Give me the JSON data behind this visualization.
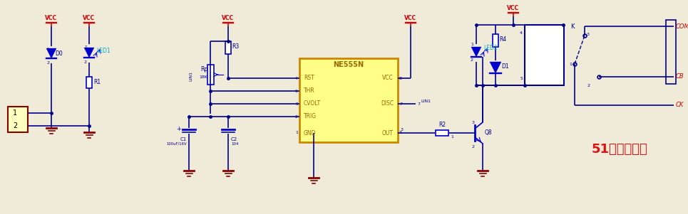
{
  "bg_color": "#f0ead8",
  "wire_color": "#00008b",
  "vcc_color": "#cc0000",
  "gnd_color": "#8b0000",
  "blue": "#0000cc",
  "cyan": "#00aacc",
  "red_label": "#cc0000",
  "red2": "#dd1111",
  "yellow_fill": "#ffff88",
  "yellow_edge": "#cc8800",
  "white": "#ffffff",
  "ic_text_color": "#996600",
  "title": "51黑电子论坛",
  "vcc_lbl": "VCC",
  "lin1_lbl": "LIN1",
  "ne555_lbl": "NE555N",
  "com_lbl": "COM",
  "cb_lbl": "CB",
  "ck_lbl": "CK"
}
